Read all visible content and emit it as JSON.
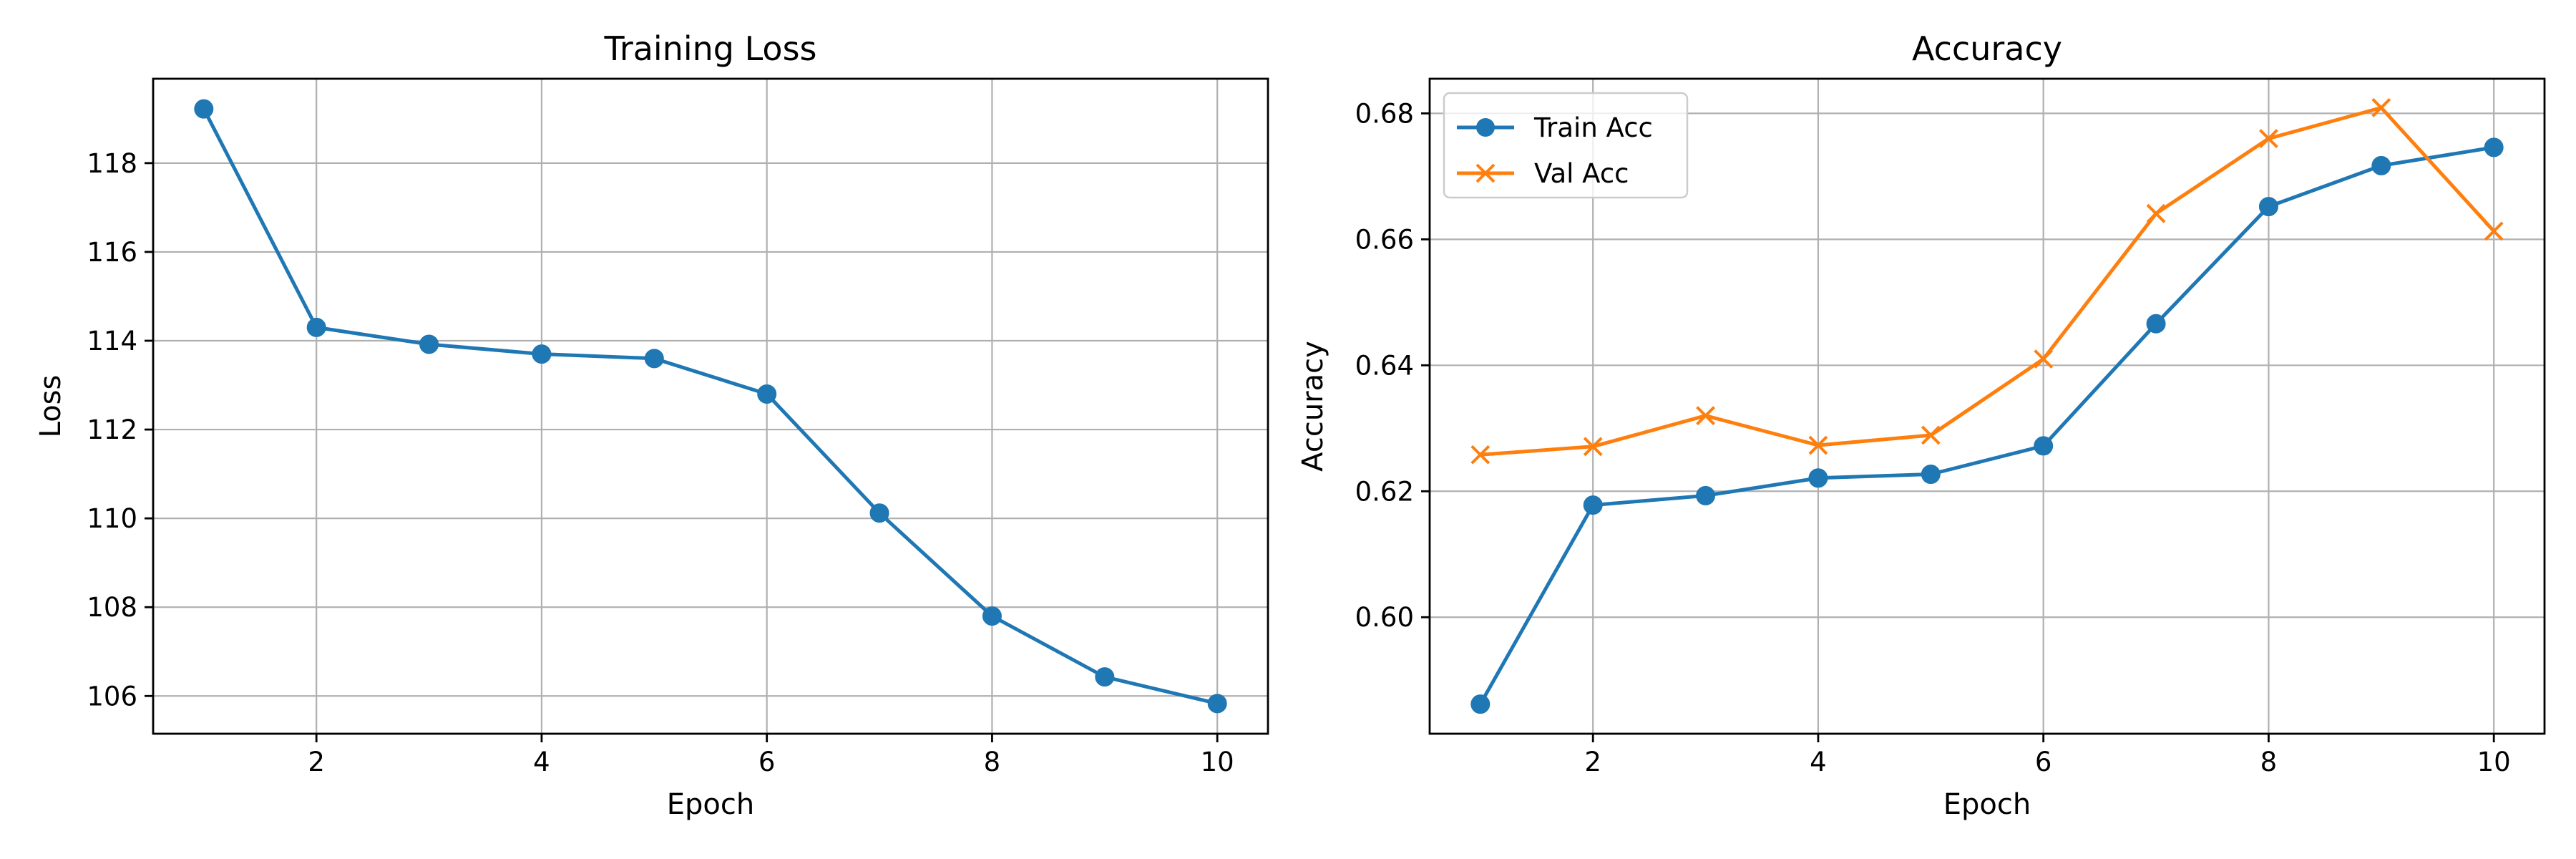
{
  "chart_data": [
    {
      "type": "line",
      "title": "Training Loss",
      "xlabel": "Epoch",
      "ylabel": "Loss",
      "xlim": [
        0.55,
        10.45
      ],
      "ylim": [
        105.15,
        119.9
      ],
      "xticks": [
        2,
        4,
        6,
        8,
        10
      ],
      "yticks": [
        106,
        108,
        110,
        112,
        114,
        116,
        118
      ],
      "grid": true,
      "legend": null,
      "x": [
        1,
        2,
        3,
        4,
        5,
        6,
        7,
        8,
        9,
        10
      ],
      "series": [
        {
          "name": "",
          "color": "#1f77b4",
          "marker": "circle",
          "values": [
            119.22,
            114.3,
            113.92,
            113.7,
            113.6,
            112.8,
            110.12,
            107.8,
            106.43,
            105.83
          ]
        }
      ]
    },
    {
      "type": "line",
      "title": "Accuracy",
      "xlabel": "Epoch",
      "ylabel": "Accuracy",
      "xlim": [
        0.55,
        10.45
      ],
      "ylim": [
        0.5815,
        0.6855
      ],
      "xticks": [
        2,
        4,
        6,
        8,
        10
      ],
      "yticks": [
        0.6,
        0.62,
        0.64,
        0.66,
        0.68
      ],
      "ytick_labels": [
        "0.60",
        "0.62",
        "0.64",
        "0.66",
        "0.68"
      ],
      "grid": true,
      "legend": "top-left",
      "x": [
        1,
        2,
        3,
        4,
        5,
        6,
        7,
        8,
        9,
        10
      ],
      "series": [
        {
          "name": "Train Acc",
          "color": "#1f77b4",
          "marker": "circle",
          "values": [
            0.5862,
            0.6178,
            0.6193,
            0.6221,
            0.6227,
            0.6272,
            0.6466,
            0.6652,
            0.6717,
            0.6746
          ]
        },
        {
          "name": "Val Acc",
          "color": "#ff7f0e",
          "marker": "x",
          "values": [
            0.6258,
            0.6271,
            0.632,
            0.6273,
            0.6289,
            0.641,
            0.6641,
            0.676,
            0.6809,
            0.6613
          ]
        }
      ]
    }
  ]
}
